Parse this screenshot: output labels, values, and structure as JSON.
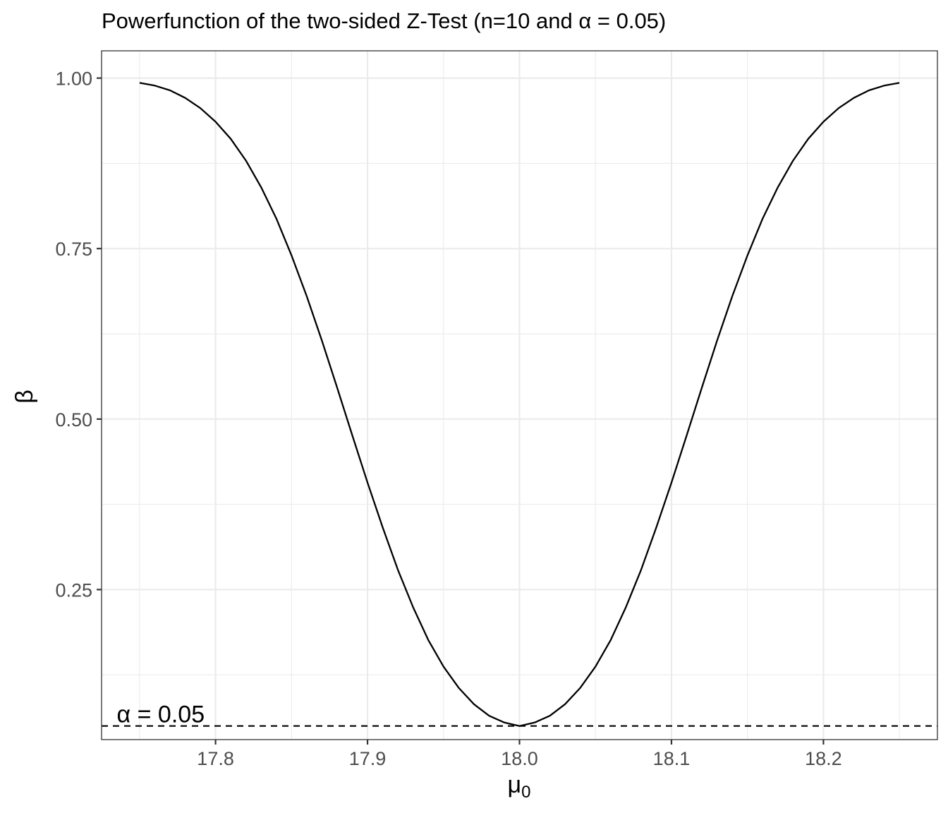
{
  "chart_data": {
    "type": "line",
    "title": "Powerfunction of the two-sided Z-Test (n=10 and α = 0.05)",
    "xlabel": "μ",
    "xlabel_subscript": "0",
    "ylabel": "β",
    "xlim": [
      17.725,
      18.275
    ],
    "ylim": [
      0.03,
      1.04
    ],
    "x_ticks": [
      17.8,
      17.9,
      18.0,
      18.1,
      18.2
    ],
    "x_tick_labels": [
      "17.8",
      "17.9",
      "18.0",
      "18.1",
      "18.2"
    ],
    "y_ticks": [
      0.25,
      0.5,
      0.75,
      1.0
    ],
    "y_tick_labels": [
      "0.25",
      "0.50",
      "0.75",
      "1.00"
    ],
    "grid": true,
    "series": [
      {
        "x": [
          17.75,
          17.76,
          17.77,
          17.78,
          17.79,
          17.8,
          17.81,
          17.82,
          17.83,
          17.84,
          17.85,
          17.86,
          17.87,
          17.88,
          17.89,
          17.9,
          17.91,
          17.92,
          17.93,
          17.94,
          17.95,
          17.96,
          17.97,
          17.98,
          17.99,
          18.0,
          18.01,
          18.02,
          18.03,
          18.04,
          18.05,
          18.06,
          18.07,
          18.08,
          18.09,
          18.1,
          18.11,
          18.12,
          18.13,
          18.14,
          18.15,
          18.16,
          18.17,
          18.18,
          18.19,
          18.2,
          18.21,
          18.22,
          18.23,
          18.24,
          18.25
        ],
        "y": [
          0.993,
          0.989,
          0.982,
          0.971,
          0.956,
          0.936,
          0.911,
          0.879,
          0.84,
          0.794,
          0.74,
          0.68,
          0.615,
          0.546,
          0.476,
          0.407,
          0.341,
          0.279,
          0.224,
          0.176,
          0.137,
          0.106,
          0.082,
          0.065,
          0.055,
          0.05,
          0.055,
          0.065,
          0.082,
          0.106,
          0.137,
          0.176,
          0.224,
          0.279,
          0.341,
          0.407,
          0.476,
          0.546,
          0.615,
          0.68,
          0.74,
          0.794,
          0.84,
          0.879,
          0.911,
          0.936,
          0.956,
          0.971,
          0.982,
          0.989,
          0.993
        ],
        "color": "#000000"
      }
    ],
    "hline": {
      "y": 0.05,
      "style": "dashed",
      "color": "#000000"
    },
    "annotation": {
      "text": "α = 0.05",
      "x": 17.735,
      "y": 0.05
    }
  }
}
